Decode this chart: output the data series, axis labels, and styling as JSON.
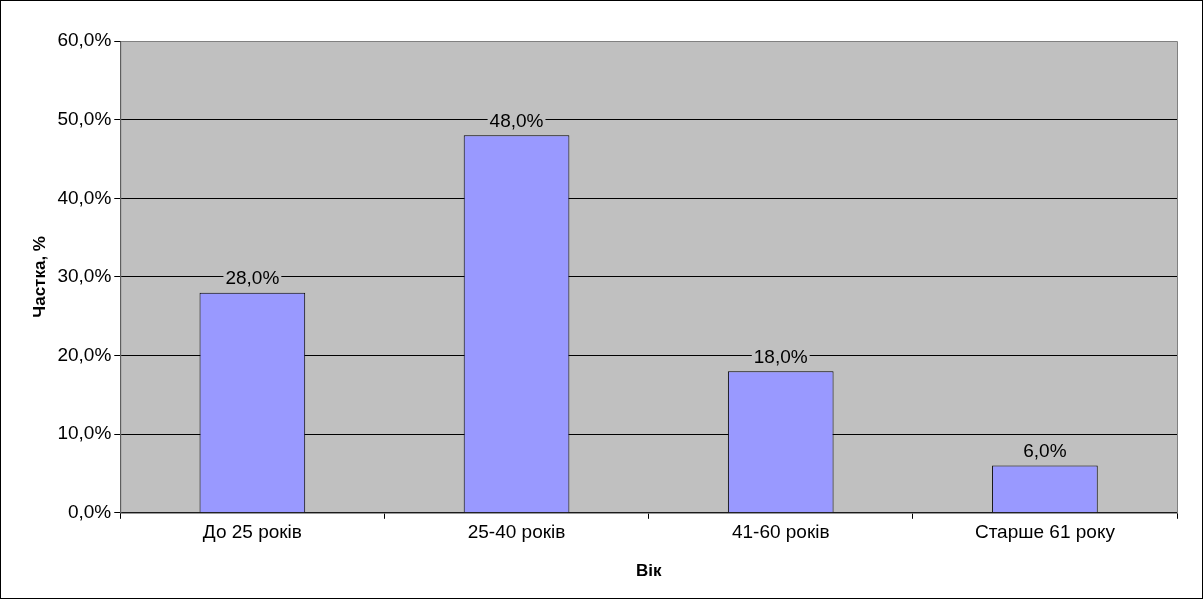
{
  "chart_data": {
    "type": "bar",
    "xlabel": "Вік",
    "ylabel": "Частка, %",
    "categories": [
      "До 25 років",
      "25-40 років",
      "41-60 років",
      "Старше 61 року"
    ],
    "values": [
      28,
      48,
      18,
      6
    ],
    "color": "#9999ff",
    "value_labels": [
      "28,0%",
      "48,0%",
      "18,0%",
      "6,0%"
    ],
    "ylim": [
      0,
      60
    ],
    "yticks": [
      {
        "value": 0,
        "label": "0,0%"
      },
      {
        "value": 10,
        "label": "10,0%"
      },
      {
        "value": 20,
        "label": "20,0%"
      },
      {
        "value": 30,
        "label": "30,0%"
      },
      {
        "value": 40,
        "label": "40,0%"
      },
      {
        "value": 50,
        "label": "50,0%"
      },
      {
        "value": 60,
        "label": "60,0%"
      }
    ],
    "grid": "y",
    "legend": false
  }
}
